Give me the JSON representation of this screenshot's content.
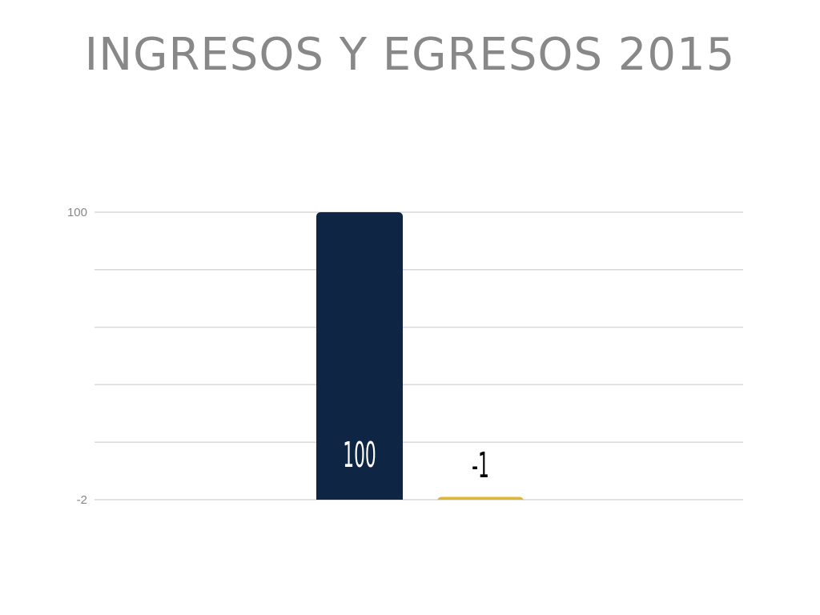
{
  "chart_data": {
    "type": "bar",
    "title": "INGRESOS Y EGRESOS 2015",
    "categories": [
      "",
      ""
    ],
    "values": [
      100,
      -1
    ],
    "data_labels": [
      "100",
      "-1"
    ],
    "ylim": [
      -2,
      100
    ],
    "yticks": [
      "100",
      "-2"
    ],
    "grid": true,
    "legend": "none",
    "colors": [
      "#0e2644",
      "#e3b62a"
    ],
    "label_colors": [
      "#ffffff",
      "#000000"
    ]
  }
}
